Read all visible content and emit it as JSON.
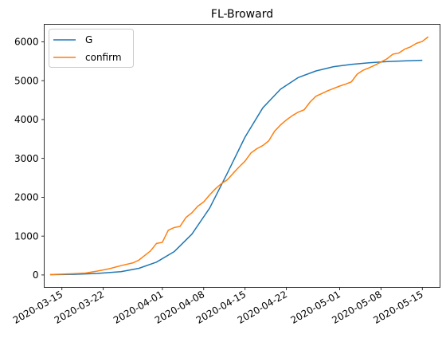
{
  "chart_data": {
    "type": "line",
    "title": "FL-Broward",
    "xlabel": "",
    "ylabel": "",
    "x_axis_type": "date",
    "xlim": [
      "2020-03-12",
      "2020-05-18"
    ],
    "ylim": [
      -320,
      6450
    ],
    "x_ticks": [
      "2020-03-15",
      "2020-03-22",
      "2020-04-01",
      "2020-04-08",
      "2020-04-15",
      "2020-04-22",
      "2020-05-01",
      "2020-05-08",
      "2020-05-15"
    ],
    "y_ticks": [
      0,
      1000,
      2000,
      3000,
      4000,
      5000,
      6000
    ],
    "grid": false,
    "legend": {
      "position": "top-left"
    },
    "series": [
      {
        "name": "G",
        "color": "#1f77b4",
        "points": [
          [
            "2020-03-13",
            8
          ],
          [
            "2020-03-17",
            16
          ],
          [
            "2020-03-21",
            40
          ],
          [
            "2020-03-25",
            85
          ],
          [
            "2020-03-28",
            170
          ],
          [
            "2020-03-31",
            330
          ],
          [
            "2020-04-03",
            600
          ],
          [
            "2020-04-06",
            1050
          ],
          [
            "2020-04-09",
            1720
          ],
          [
            "2020-04-12",
            2620
          ],
          [
            "2020-04-15",
            3550
          ],
          [
            "2020-04-18",
            4300
          ],
          [
            "2020-04-21",
            4780
          ],
          [
            "2020-04-24",
            5080
          ],
          [
            "2020-04-27",
            5250
          ],
          [
            "2020-04-30",
            5360
          ],
          [
            "2020-05-03",
            5420
          ],
          [
            "2020-05-06",
            5460
          ],
          [
            "2020-05-09",
            5490
          ],
          [
            "2020-05-12",
            5510
          ],
          [
            "2020-05-15",
            5525
          ]
        ]
      },
      {
        "name": "confirm",
        "color": "#ff7f0e",
        "points": [
          [
            "2020-03-13",
            10
          ],
          [
            "2020-03-15",
            20
          ],
          [
            "2020-03-17",
            35
          ],
          [
            "2020-03-19",
            50
          ],
          [
            "2020-03-21",
            100
          ],
          [
            "2020-03-23",
            160
          ],
          [
            "2020-03-25",
            240
          ],
          [
            "2020-03-27",
            310
          ],
          [
            "2020-03-28",
            380
          ],
          [
            "2020-03-29",
            500
          ],
          [
            "2020-03-30",
            620
          ],
          [
            "2020-03-31",
            810
          ],
          [
            "2020-04-01",
            840
          ],
          [
            "2020-04-02",
            1150
          ],
          [
            "2020-04-03",
            1220
          ],
          [
            "2020-04-04",
            1250
          ],
          [
            "2020-04-05",
            1480
          ],
          [
            "2020-04-06",
            1600
          ],
          [
            "2020-04-07",
            1770
          ],
          [
            "2020-04-08",
            1880
          ],
          [
            "2020-04-09",
            2060
          ],
          [
            "2020-04-10",
            2220
          ],
          [
            "2020-04-11",
            2350
          ],
          [
            "2020-04-12",
            2450
          ],
          [
            "2020-04-13",
            2620
          ],
          [
            "2020-04-14",
            2780
          ],
          [
            "2020-04-15",
            2930
          ],
          [
            "2020-04-16",
            3140
          ],
          [
            "2020-04-17",
            3250
          ],
          [
            "2020-04-18",
            3330
          ],
          [
            "2020-04-19",
            3450
          ],
          [
            "2020-04-20",
            3700
          ],
          [
            "2020-04-21",
            3860
          ],
          [
            "2020-04-22",
            3990
          ],
          [
            "2020-04-23",
            4100
          ],
          [
            "2020-04-24",
            4190
          ],
          [
            "2020-04-25",
            4250
          ],
          [
            "2020-04-26",
            4450
          ],
          [
            "2020-04-27",
            4600
          ],
          [
            "2020-04-28",
            4670
          ],
          [
            "2020-04-29",
            4740
          ],
          [
            "2020-04-30",
            4800
          ],
          [
            "2020-05-01",
            4860
          ],
          [
            "2020-05-02",
            4910
          ],
          [
            "2020-05-03",
            4970
          ],
          [
            "2020-05-04",
            5170
          ],
          [
            "2020-05-05",
            5270
          ],
          [
            "2020-05-06",
            5330
          ],
          [
            "2020-05-07",
            5400
          ],
          [
            "2020-05-08",
            5480
          ],
          [
            "2020-05-09",
            5560
          ],
          [
            "2020-05-10",
            5680
          ],
          [
            "2020-05-11",
            5710
          ],
          [
            "2020-05-12",
            5810
          ],
          [
            "2020-05-13",
            5870
          ],
          [
            "2020-05-14",
            5960
          ],
          [
            "2020-05-15",
            6010
          ],
          [
            "2020-05-16",
            6130
          ]
        ]
      }
    ]
  }
}
